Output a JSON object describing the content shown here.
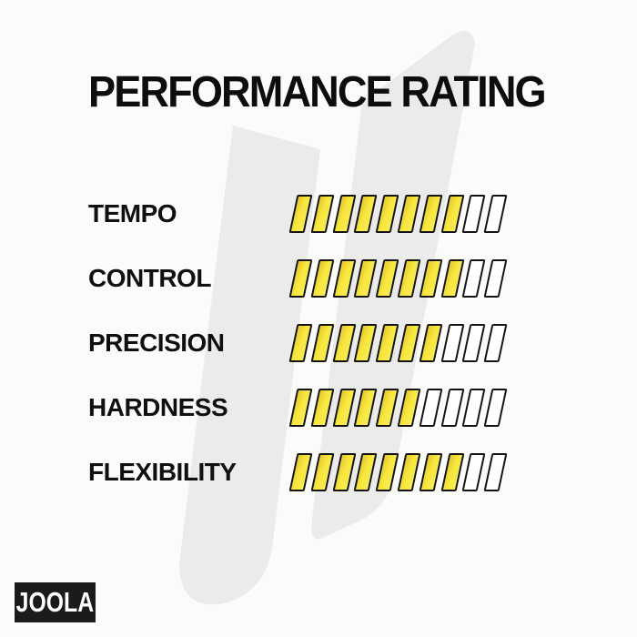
{
  "page": {
    "background": "#FBFBF9"
  },
  "header": {
    "title": "PERFORMANCE RATING"
  },
  "chart_data": {
    "type": "bar",
    "title": "PERFORMANCE RATING",
    "categories": [
      "TEMPO",
      "CONTROL",
      "PRECISION",
      "HARDNESS",
      "FLEXIBILITY"
    ],
    "values": [
      8,
      8,
      7,
      6,
      8
    ],
    "scale_max": 10,
    "segment_style": "slanted-parallelogram-ticks",
    "filled_color": "#F8E73F",
    "filled_shade_color": "#E6C72B",
    "empty_color": "#FFFFFF",
    "outline_color": "#131313",
    "legend": "none",
    "grid": false
  },
  "footer": {
    "logo_text": "JOOLA"
  },
  "watermark": {
    "name": "joola-mark",
    "color": "#EBEBE9"
  }
}
